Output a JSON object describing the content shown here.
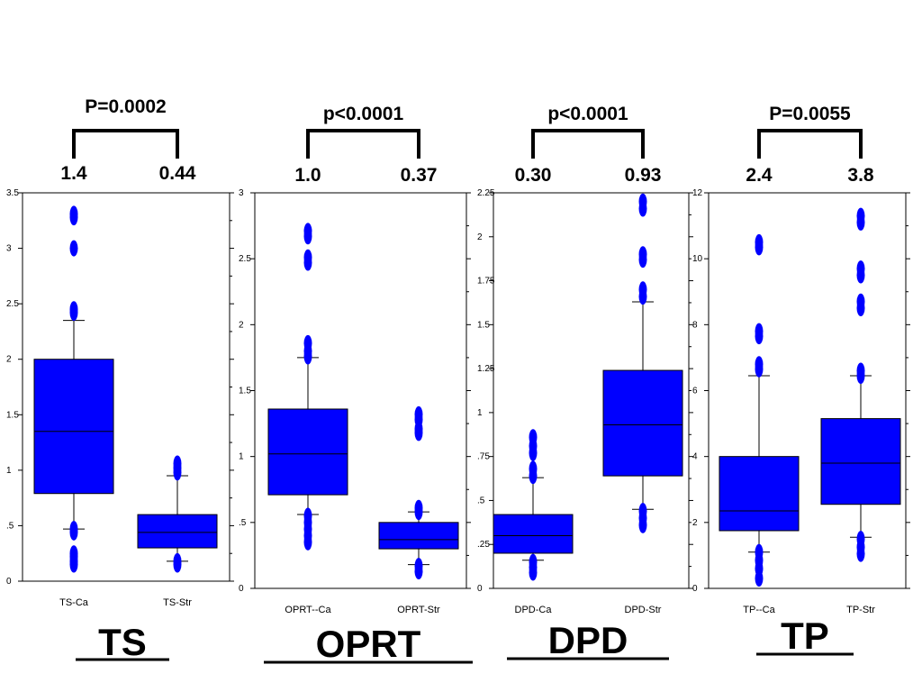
{
  "chart_data": [
    {
      "type": "box",
      "title": "TS",
      "p_value": "P=0.0002",
      "medians_label": [
        "1.4",
        "0.44"
      ],
      "categories": [
        "TS-Ca",
        "TS-Str"
      ],
      "ylim": [
        0,
        3.5
      ],
      "yticks": [
        0,
        0.5,
        1,
        1.5,
        2,
        2.5,
        3,
        3.5
      ],
      "ytick_labels": [
        "0",
        ".5",
        "1",
        "1.5",
        "2",
        "2.5",
        "3",
        "3.5"
      ],
      "box_color": "#0000ff",
      "boxes": [
        {
          "category": "TS-Ca",
          "whisker_low": 0.47,
          "q1": 0.79,
          "median": 1.35,
          "q3": 2.0,
          "whisker_high": 2.35,
          "outliers": [
            0.15,
            0.18,
            0.22,
            0.25,
            0.44,
            0.47,
            2.42,
            2.45,
            3.0,
            3.28,
            3.31
          ]
        },
        {
          "category": "TS-Str",
          "whisker_low": 0.18,
          "q1": 0.3,
          "median": 0.44,
          "q3": 0.6,
          "whisker_high": 0.95,
          "outliers": [
            0.15,
            0.18,
            0.98,
            1.02,
            1.06
          ]
        }
      ]
    },
    {
      "type": "box",
      "title": "OPRT",
      "p_value": "p<0.0001",
      "medians_label": [
        "1.0",
        "0.37"
      ],
      "categories": [
        "OPRT--Ca",
        "OPRT-Str"
      ],
      "ylim": [
        0,
        3
      ],
      "yticks": [
        0,
        0.5,
        1,
        1.5,
        2,
        2.5,
        3
      ],
      "ytick_labels": [
        "0",
        ".5",
        "1",
        "1.5",
        "2",
        "2.5",
        "3"
      ],
      "box_color": "#0000ff",
      "boxes": [
        {
          "category": "OPRT--Ca",
          "whisker_low": 0.56,
          "q1": 0.71,
          "median": 1.02,
          "q3": 1.36,
          "whisker_high": 1.75,
          "outliers": [
            0.35,
            0.4,
            0.45,
            0.5,
            0.55,
            1.76,
            1.8,
            1.86,
            2.47,
            2.51,
            2.67,
            2.71
          ]
        },
        {
          "category": "OPRT-Str",
          "whisker_low": 0.18,
          "q1": 0.3,
          "median": 0.37,
          "q3": 0.5,
          "whisker_high": 0.58,
          "outliers": [
            0.13,
            0.17,
            0.58,
            0.61,
            1.18,
            1.21,
            1.28,
            1.32
          ]
        }
      ]
    },
    {
      "type": "box",
      "title": "DPD",
      "p_value": "p<0.0001",
      "medians_label": [
        "0.30",
        "0.93"
      ],
      "categories": [
        "DPD-Ca",
        "DPD-Str"
      ],
      "ylim": [
        0,
        2.25
      ],
      "yticks": [
        0,
        0.25,
        0.5,
        0.75,
        1,
        1.25,
        1.5,
        1.75,
        2,
        2.25
      ],
      "ytick_labels": [
        "0",
        ".25",
        ".5",
        ".75",
        "1",
        "1.25",
        "1.5",
        "1.75",
        "2",
        "2.25"
      ],
      "box_color": "#0000ff",
      "boxes": [
        {
          "category": "DPD-Ca",
          "whisker_low": 0.16,
          "q1": 0.2,
          "median": 0.3,
          "q3": 0.42,
          "whisker_high": 0.63,
          "outliers": [
            0.09,
            0.12,
            0.15,
            0.64,
            0.68,
            0.77,
            0.81,
            0.86
          ]
        },
        {
          "category": "DPD-Str",
          "whisker_low": 0.45,
          "q1": 0.64,
          "median": 0.93,
          "q3": 1.24,
          "whisker_high": 1.63,
          "outliers": [
            0.36,
            0.4,
            0.44,
            1.66,
            1.7,
            1.87,
            1.9,
            2.16,
            2.2
          ]
        }
      ]
    },
    {
      "type": "box",
      "title": "TP",
      "p_value": "P=0.0055",
      "medians_label": [
        "2.4",
        "3.8"
      ],
      "categories": [
        "TP--Ca",
        "TP-Str"
      ],
      "ylim": [
        0,
        12
      ],
      "yticks": [
        0,
        2,
        4,
        6,
        8,
        10,
        12
      ],
      "ytick_labels": [
        "0",
        "2",
        "4",
        "6",
        "8",
        "10",
        "12"
      ],
      "box_color": "#0000ff",
      "boxes": [
        {
          "category": "TP--Ca",
          "whisker_low": 1.1,
          "q1": 1.75,
          "median": 2.35,
          "q3": 4.0,
          "whisker_high": 6.45,
          "outliers": [
            0.3,
            0.6,
            0.85,
            1.1,
            6.65,
            6.8,
            7.65,
            7.8,
            10.35,
            10.5
          ]
        },
        {
          "category": "TP-Str",
          "whisker_low": 1.55,
          "q1": 2.55,
          "median": 3.8,
          "q3": 5.15,
          "whisker_high": 6.45,
          "outliers": [
            1.05,
            1.25,
            1.5,
            6.45,
            6.6,
            8.5,
            8.7,
            9.5,
            9.7,
            11.1,
            11.3
          ]
        }
      ]
    }
  ]
}
